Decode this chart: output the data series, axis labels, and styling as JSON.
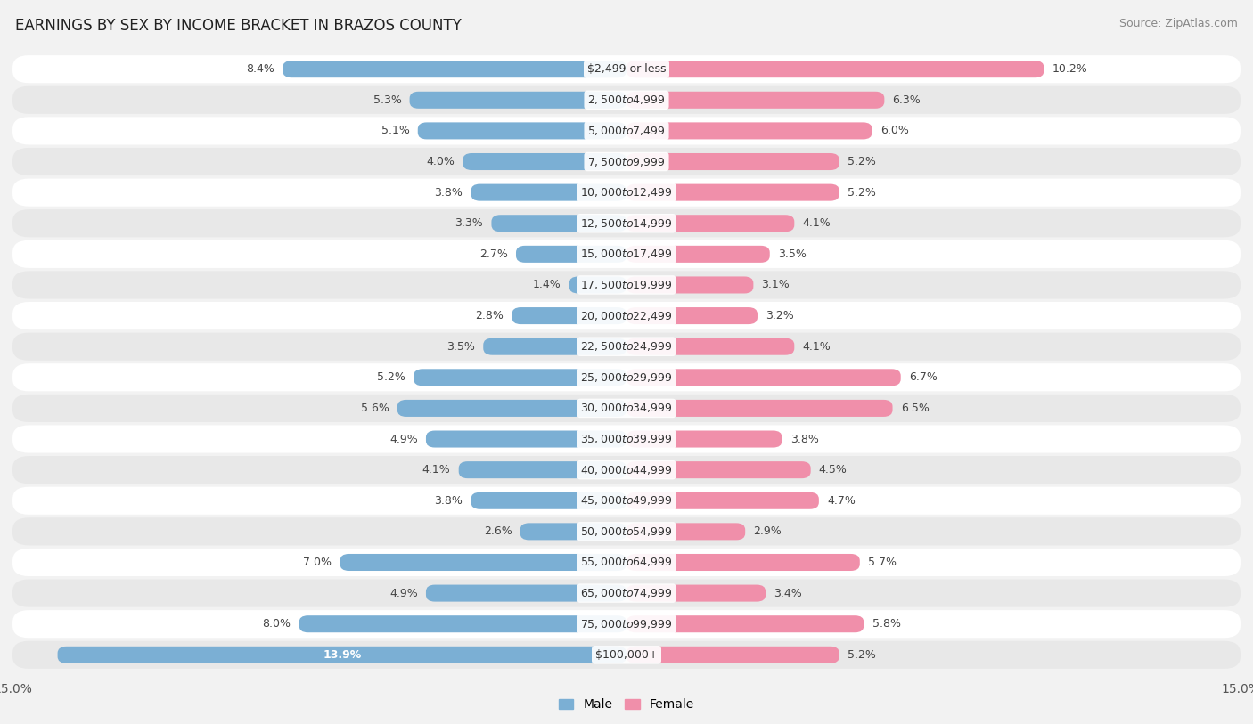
{
  "title": "EARNINGS BY SEX BY INCOME BRACKET IN BRAZOS COUNTY",
  "source": "Source: ZipAtlas.com",
  "categories": [
    "$2,499 or less",
    "$2,500 to $4,999",
    "$5,000 to $7,499",
    "$7,500 to $9,999",
    "$10,000 to $12,499",
    "$12,500 to $14,999",
    "$15,000 to $17,499",
    "$17,500 to $19,999",
    "$20,000 to $22,499",
    "$22,500 to $24,999",
    "$25,000 to $29,999",
    "$30,000 to $34,999",
    "$35,000 to $39,999",
    "$40,000 to $44,999",
    "$45,000 to $49,999",
    "$50,000 to $54,999",
    "$55,000 to $64,999",
    "$65,000 to $74,999",
    "$75,000 to $99,999",
    "$100,000+"
  ],
  "male_values": [
    8.4,
    5.3,
    5.1,
    4.0,
    3.8,
    3.3,
    2.7,
    1.4,
    2.8,
    3.5,
    5.2,
    5.6,
    4.9,
    4.1,
    3.8,
    2.6,
    7.0,
    4.9,
    8.0,
    13.9
  ],
  "female_values": [
    10.2,
    6.3,
    6.0,
    5.2,
    5.2,
    4.1,
    3.5,
    3.1,
    3.2,
    4.1,
    6.7,
    6.5,
    3.8,
    4.5,
    4.7,
    2.9,
    5.7,
    3.4,
    5.8,
    5.2
  ],
  "male_color": "#7bafd4",
  "female_color": "#f08faa",
  "male_label": "Male",
  "female_label": "Female",
  "xlim": 15.0,
  "bg_color": "#f2f2f2",
  "row_color_odd": "#ffffff",
  "row_color_even": "#e8e8e8",
  "title_fontsize": 12,
  "label_fontsize": 9,
  "value_fontsize": 9,
  "tick_fontsize": 10,
  "source_fontsize": 9
}
